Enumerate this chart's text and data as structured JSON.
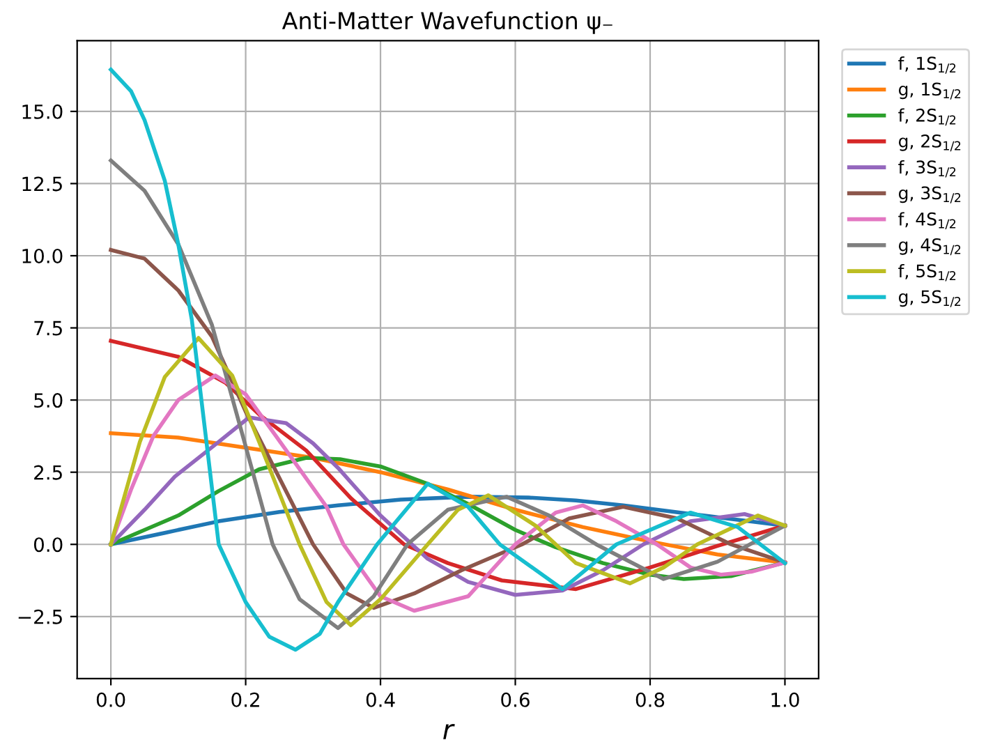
{
  "chart_data": {
    "type": "line",
    "title": "Anti-Matter Wavefunction ψ₋",
    "xlabel": "r",
    "xlim": [
      -0.05,
      1.05
    ],
    "ylim": [
      -4.65,
      17.45
    ],
    "xticks": [
      {
        "value": 0,
        "label": "0.0"
      },
      {
        "value": 0.2,
        "label": "0.2"
      },
      {
        "value": 0.4,
        "label": "0.4"
      },
      {
        "value": 0.6,
        "label": "0.6"
      },
      {
        "value": 0.8,
        "label": "0.8"
      },
      {
        "value": 1.0,
        "label": "1.0"
      }
    ],
    "yticks": [
      {
        "value": -2.5,
        "label": "−2.5"
      },
      {
        "value": 0,
        "label": "0.0"
      },
      {
        "value": 2.5,
        "label": "2.5"
      },
      {
        "value": 5,
        "label": "5.0"
      },
      {
        "value": 7.5,
        "label": "7.5"
      },
      {
        "value": 10,
        "label": "10.0"
      },
      {
        "value": 12.5,
        "label": "12.5"
      },
      {
        "value": 15,
        "label": "15.0"
      }
    ],
    "grid": true,
    "legend": "top right",
    "marker": "none",
    "line_style": "solid",
    "series": [
      {
        "name": "f, 1S$_{1/2}$",
        "color": "#1f77b4",
        "x": [
          0,
          0.08,
          0.16,
          0.25,
          0.337,
          0.43,
          0.53,
          0.62,
          0.69,
          0.76,
          0.845,
          0.92,
          1.0
        ],
        "values": [
          0,
          0.4,
          0.8,
          1.12,
          1.35,
          1.55,
          1.65,
          1.62,
          1.52,
          1.35,
          1.1,
          0.88,
          0.65
        ]
      },
      {
        "name": "g, 1S$_{1/2}$",
        "color": "#ff7f0e",
        "x": [
          0,
          0.1,
          0.2,
          0.3,
          0.4,
          0.5,
          0.6,
          0.7,
          0.8,
          0.9,
          1.0
        ],
        "values": [
          3.85,
          3.7,
          3.35,
          3.0,
          2.5,
          1.9,
          1.2,
          0.6,
          0.1,
          -0.35,
          -0.63
        ]
      },
      {
        "name": "f, 2S$_{1/2}$",
        "color": "#2ca02c",
        "x": [
          0,
          0.05,
          0.1,
          0.16,
          0.22,
          0.29,
          0.34,
          0.4,
          0.47,
          0.53,
          0.6,
          0.66,
          0.73,
          0.8,
          0.85,
          0.92,
          1.0
        ],
        "values": [
          0,
          0.5,
          1.0,
          1.85,
          2.6,
          3.0,
          2.95,
          2.7,
          2.1,
          1.4,
          0.5,
          -0.1,
          -0.65,
          -1.05,
          -1.2,
          -1.1,
          -0.63
        ]
      },
      {
        "name": "g, 2S$_{1/2}$",
        "color": "#d62728",
        "x": [
          0,
          0.1,
          0.17,
          0.22,
          0.29,
          0.356,
          0.435,
          0.5,
          0.58,
          0.69,
          0.8,
          0.9,
          1.0
        ],
        "values": [
          7.05,
          6.5,
          5.6,
          4.5,
          3.25,
          1.6,
          0,
          -0.65,
          -1.25,
          -1.55,
          -0.8,
          -0.05,
          0.65
        ]
      },
      {
        "name": "f, 3S$_{1/2}$",
        "color": "#9467bd",
        "x": [
          0,
          0.05,
          0.095,
          0.16,
          0.205,
          0.26,
          0.3,
          0.337,
          0.4,
          0.47,
          0.53,
          0.6,
          0.67,
          0.73,
          0.79,
          0.86,
          0.94,
          1.0
        ],
        "values": [
          0,
          1.2,
          2.35,
          3.55,
          4.4,
          4.2,
          3.5,
          2.65,
          1.0,
          -0.5,
          -1.3,
          -1.75,
          -1.6,
          -0.9,
          0,
          0.8,
          1.05,
          0.65
        ]
      },
      {
        "name": "g, 3S$_{1/2}$",
        "color": "#8c564b",
        "x": [
          0,
          0.05,
          0.1,
          0.15,
          0.2,
          0.25,
          0.3,
          0.35,
          0.39,
          0.45,
          0.52,
          0.61,
          0.68,
          0.76,
          0.84,
          0.92,
          1.0
        ],
        "values": [
          10.2,
          9.9,
          8.8,
          7.2,
          4.6,
          2.3,
          0,
          -1.7,
          -2.2,
          -1.7,
          -0.9,
          0,
          0.9,
          1.3,
          0.9,
          0,
          -0.63
        ]
      },
      {
        "name": "f, 4S$_{1/2}$",
        "color": "#e377c2",
        "x": [
          0,
          0.03,
          0.063,
          0.1,
          0.155,
          0.2,
          0.245,
          0.32,
          0.345,
          0.4,
          0.45,
          0.53,
          0.6,
          0.66,
          0.7,
          0.75,
          0.81,
          0.86,
          0.905,
          0.95,
          1.0
        ],
        "values": [
          0,
          1.9,
          3.75,
          5.0,
          5.85,
          5.2,
          3.75,
          1.3,
          0,
          -1.8,
          -2.3,
          -1.8,
          0,
          1.1,
          1.35,
          0.8,
          0,
          -0.8,
          -1.05,
          -0.95,
          -0.63
        ]
      },
      {
        "name": "g, 4S$_{1/2}$",
        "color": "#7f7f7f",
        "x": [
          0,
          0.05,
          0.1,
          0.15,
          0.2,
          0.24,
          0.28,
          0.337,
          0.39,
          0.44,
          0.5,
          0.587,
          0.65,
          0.72,
          0.82,
          0.9,
          1.0
        ],
        "values": [
          13.3,
          12.25,
          10.4,
          7.6,
          3.4,
          0,
          -1.9,
          -2.9,
          -1.8,
          0,
          1.2,
          1.65,
          1.0,
          0,
          -1.2,
          -0.6,
          0.65
        ]
      },
      {
        "name": "f, 5S$_{1/2}$",
        "color": "#bcbd22",
        "x": [
          0,
          0.043,
          0.08,
          0.13,
          0.18,
          0.22,
          0.28,
          0.32,
          0.356,
          0.4,
          0.47,
          0.515,
          0.56,
          0.63,
          0.69,
          0.77,
          0.82,
          0.87,
          0.96,
          1.0
        ],
        "values": [
          0,
          3.55,
          5.8,
          7.15,
          5.85,
          3.55,
          0,
          -2.0,
          -2.8,
          -1.9,
          0,
          1.2,
          1.7,
          0.65,
          -0.65,
          -1.35,
          -0.8,
          0,
          1.0,
          0.65
        ]
      },
      {
        "name": "g, 5S$_{1/2}$",
        "color": "#17becf",
        "x": [
          0,
          0.03,
          0.05,
          0.08,
          0.1,
          0.12,
          0.14,
          0.16,
          0.2,
          0.235,
          0.274,
          0.31,
          0.337,
          0.395,
          0.47,
          0.53,
          0.577,
          0.67,
          0.75,
          0.86,
          0.93,
          1.0
        ],
        "values": [
          16.45,
          15.7,
          14.7,
          12.6,
          10.4,
          7.8,
          3.9,
          0,
          -2.0,
          -3.2,
          -3.65,
          -3.1,
          -2.0,
          0,
          2.1,
          1.3,
          0,
          -1.55,
          0,
          1.1,
          0.6,
          -0.65
        ]
      }
    ]
  }
}
